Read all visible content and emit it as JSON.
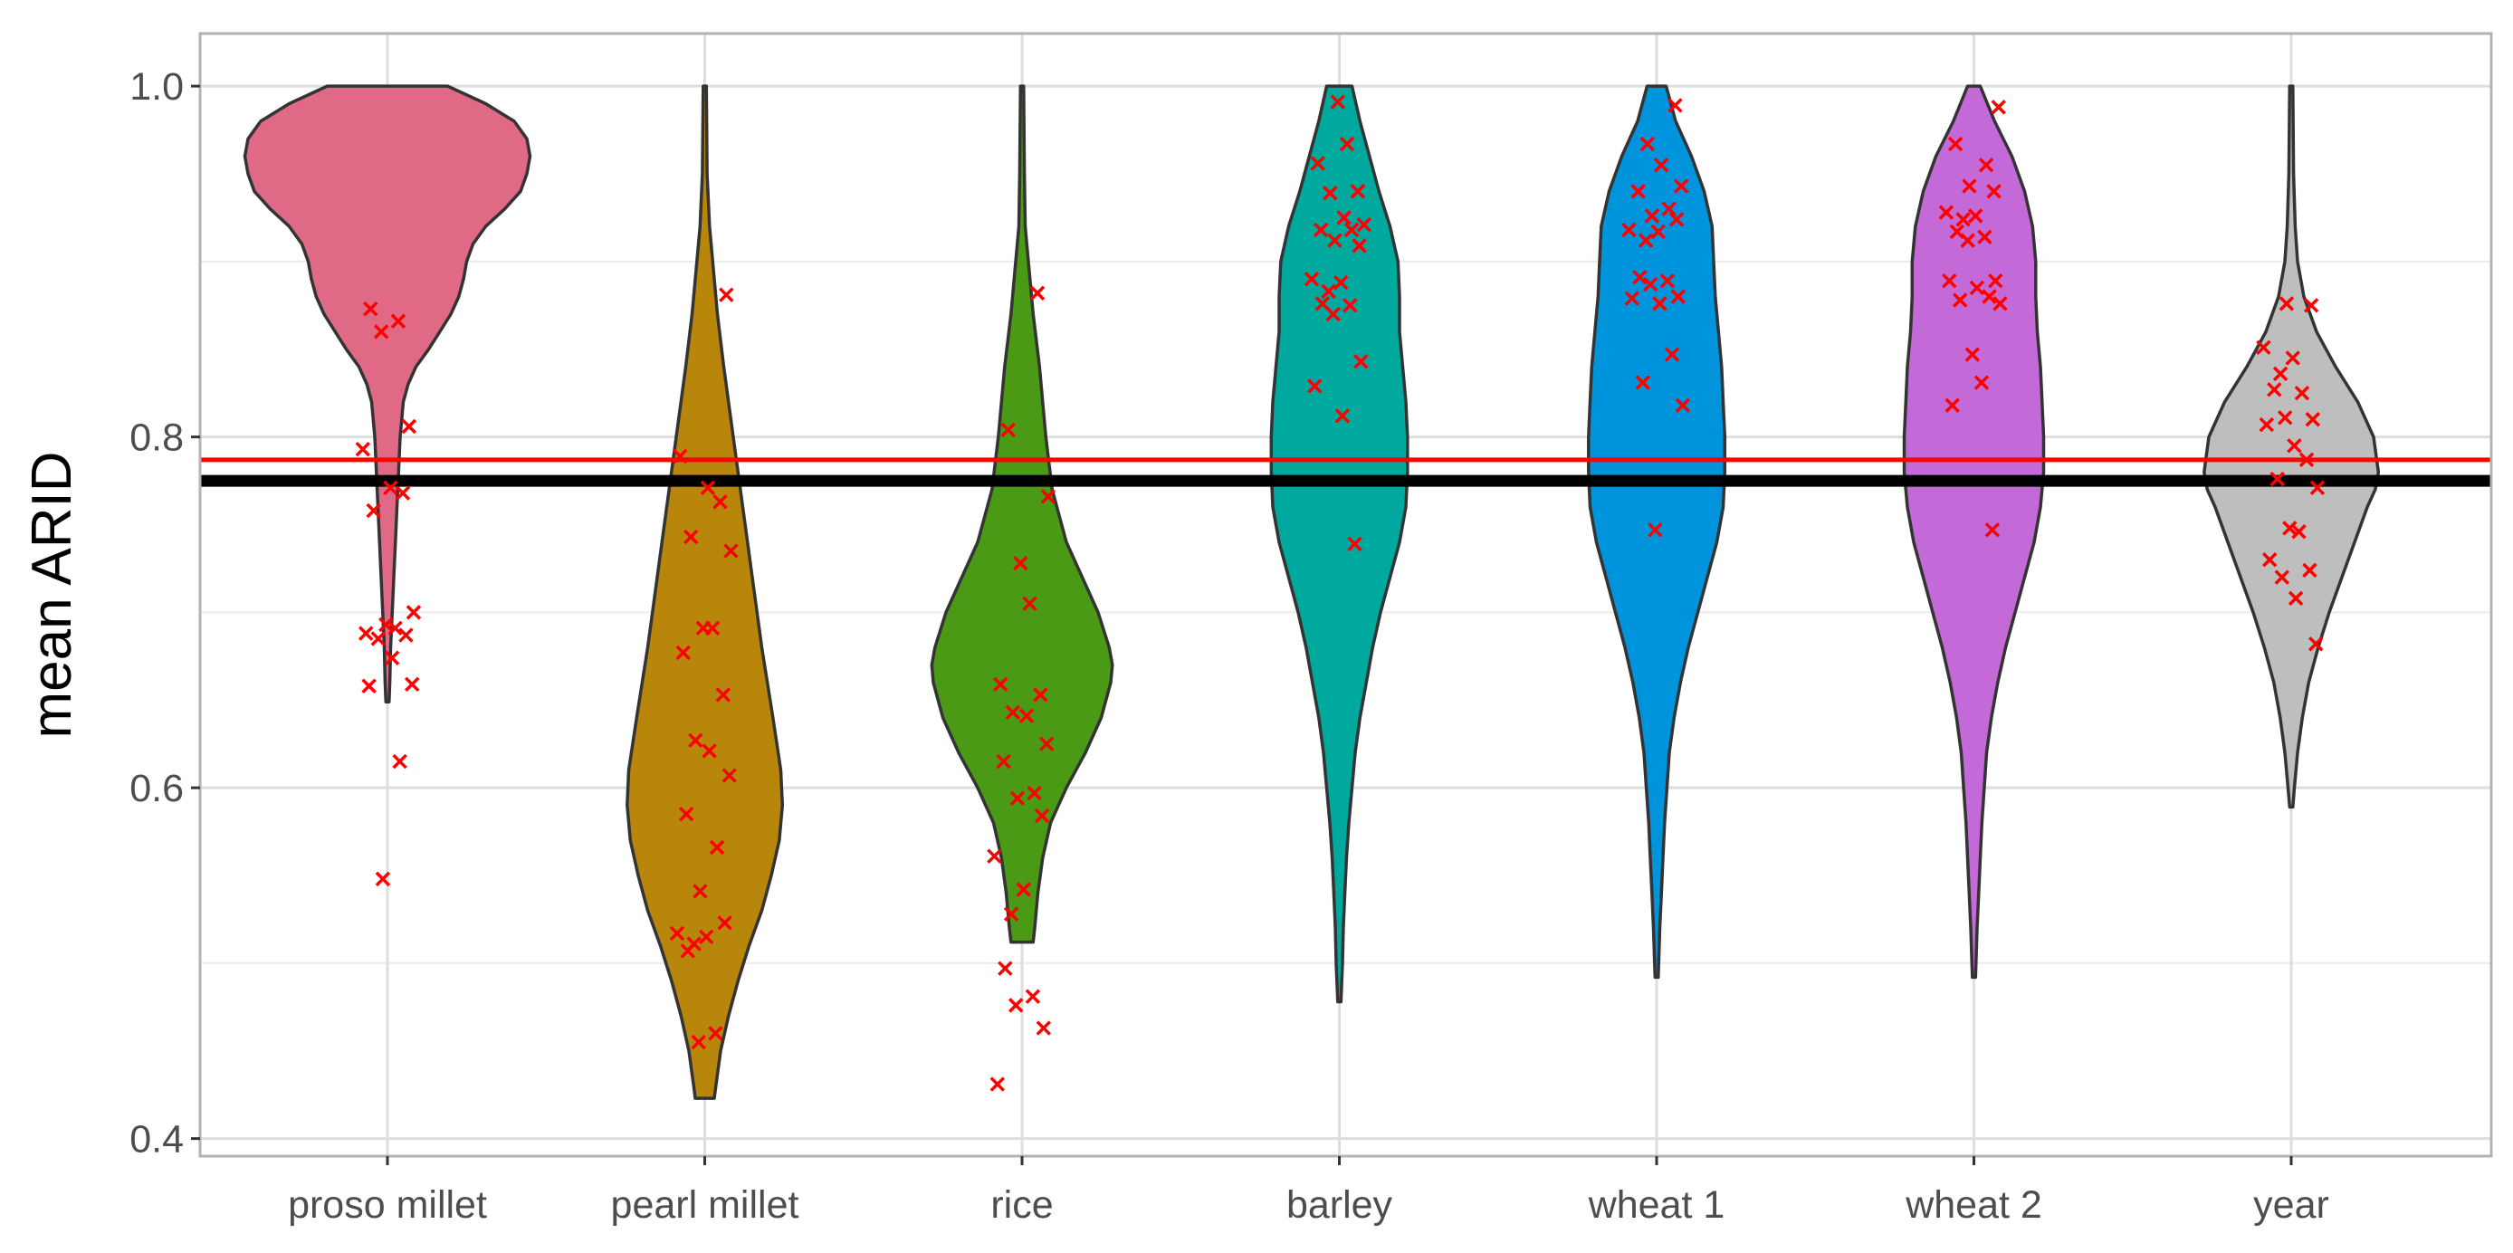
{
  "chart_data": {
    "type": "violin",
    "title": "",
    "xlabel": "",
    "ylabel": "mean ARID",
    "ylim": [
      0.39,
      1.03
    ],
    "yticks": [
      0.4,
      0.6,
      0.8,
      1.0
    ],
    "ytick_labels": [
      "0.4",
      "0.6",
      "0.8",
      "1.0"
    ],
    "minor_yticks": [
      0.5,
      0.7,
      0.9
    ],
    "grid": true,
    "reference_lines": [
      {
        "name": "red-reference-line",
        "y": 0.787,
        "color": "#ff0000"
      },
      {
        "name": "black-reference-line",
        "y": 0.775,
        "color": "#000000"
      }
    ],
    "categories": [
      "proso millet",
      "pearl millet",
      "rice",
      "barley",
      "wheat 1",
      "wheat 2",
      "year"
    ],
    "violins": [
      {
        "name": "proso millet",
        "color": "#e06a85",
        "profile": [
          [
            1.0,
            0.38
          ],
          [
            0.99,
            0.62
          ],
          [
            0.98,
            0.8
          ],
          [
            0.97,
            0.88
          ],
          [
            0.96,
            0.9
          ],
          [
            0.95,
            0.88
          ],
          [
            0.94,
            0.84
          ],
          [
            0.93,
            0.74
          ],
          [
            0.92,
            0.62
          ],
          [
            0.91,
            0.54
          ],
          [
            0.9,
            0.5
          ],
          [
            0.89,
            0.48
          ],
          [
            0.88,
            0.45
          ],
          [
            0.87,
            0.4
          ],
          [
            0.86,
            0.33
          ],
          [
            0.85,
            0.26
          ],
          [
            0.84,
            0.18
          ],
          [
            0.83,
            0.13
          ],
          [
            0.82,
            0.1
          ],
          [
            0.81,
            0.09
          ],
          [
            0.8,
            0.08
          ],
          [
            0.78,
            0.07
          ],
          [
            0.76,
            0.06
          ],
          [
            0.74,
            0.05
          ],
          [
            0.72,
            0.04
          ],
          [
            0.7,
            0.03
          ],
          [
            0.68,
            0.02
          ],
          [
            0.66,
            0.015
          ],
          [
            0.649,
            0.01
          ]
        ]
      },
      {
        "name": "pearl millet",
        "color": "#b8860b",
        "profile": [
          [
            1.0,
            0.01
          ],
          [
            0.95,
            0.015
          ],
          [
            0.92,
            0.03
          ],
          [
            0.9,
            0.05
          ],
          [
            0.87,
            0.08
          ],
          [
            0.84,
            0.12
          ],
          [
            0.8,
            0.18
          ],
          [
            0.76,
            0.24
          ],
          [
            0.72,
            0.3
          ],
          [
            0.68,
            0.36
          ],
          [
            0.64,
            0.43
          ],
          [
            0.61,
            0.48
          ],
          [
            0.59,
            0.49
          ],
          [
            0.57,
            0.47
          ],
          [
            0.55,
            0.42
          ],
          [
            0.53,
            0.36
          ],
          [
            0.51,
            0.28
          ],
          [
            0.49,
            0.21
          ],
          [
            0.47,
            0.15
          ],
          [
            0.45,
            0.1
          ],
          [
            0.43,
            0.07
          ],
          [
            0.423,
            0.06
          ]
        ]
      },
      {
        "name": "rice",
        "color": "#4b9a16",
        "profile": [
          [
            1.0,
            0.01
          ],
          [
            0.95,
            0.015
          ],
          [
            0.92,
            0.02
          ],
          [
            0.9,
            0.04
          ],
          [
            0.87,
            0.07
          ],
          [
            0.84,
            0.11
          ],
          [
            0.8,
            0.15
          ],
          [
            0.77,
            0.19
          ],
          [
            0.74,
            0.28
          ],
          [
            0.72,
            0.38
          ],
          [
            0.7,
            0.48
          ],
          [
            0.68,
            0.55
          ],
          [
            0.67,
            0.57
          ],
          [
            0.66,
            0.56
          ],
          [
            0.64,
            0.5
          ],
          [
            0.62,
            0.4
          ],
          [
            0.6,
            0.28
          ],
          [
            0.58,
            0.18
          ],
          [
            0.56,
            0.13
          ],
          [
            0.54,
            0.1
          ],
          [
            0.52,
            0.08
          ],
          [
            0.512,
            0.07
          ]
        ]
      },
      {
        "name": "barley",
        "color": "#00a99d",
        "profile": [
          [
            1.0,
            0.08
          ],
          [
            0.98,
            0.13
          ],
          [
            0.96,
            0.19
          ],
          [
            0.94,
            0.25
          ],
          [
            0.92,
            0.32
          ],
          [
            0.9,
            0.37
          ],
          [
            0.88,
            0.38
          ],
          [
            0.86,
            0.38
          ],
          [
            0.84,
            0.4
          ],
          [
            0.82,
            0.42
          ],
          [
            0.8,
            0.43
          ],
          [
            0.78,
            0.43
          ],
          [
            0.76,
            0.42
          ],
          [
            0.74,
            0.38
          ],
          [
            0.72,
            0.32
          ],
          [
            0.7,
            0.26
          ],
          [
            0.68,
            0.21
          ],
          [
            0.66,
            0.17
          ],
          [
            0.64,
            0.13
          ],
          [
            0.62,
            0.1
          ],
          [
            0.6,
            0.08
          ],
          [
            0.58,
            0.06
          ],
          [
            0.56,
            0.045
          ],
          [
            0.54,
            0.035
          ],
          [
            0.52,
            0.025
          ],
          [
            0.5,
            0.02
          ],
          [
            0.478,
            0.01
          ]
        ]
      },
      {
        "name": "wheat 1",
        "color": "#0094dd",
        "profile": [
          [
            1.0,
            0.06
          ],
          [
            0.98,
            0.12
          ],
          [
            0.96,
            0.22
          ],
          [
            0.94,
            0.3
          ],
          [
            0.92,
            0.35
          ],
          [
            0.9,
            0.36
          ],
          [
            0.88,
            0.37
          ],
          [
            0.86,
            0.39
          ],
          [
            0.84,
            0.41
          ],
          [
            0.82,
            0.42
          ],
          [
            0.8,
            0.43
          ],
          [
            0.78,
            0.43
          ],
          [
            0.76,
            0.42
          ],
          [
            0.74,
            0.38
          ],
          [
            0.72,
            0.32
          ],
          [
            0.7,
            0.26
          ],
          [
            0.68,
            0.2
          ],
          [
            0.66,
            0.15
          ],
          [
            0.64,
            0.11
          ],
          [
            0.62,
            0.08
          ],
          [
            0.6,
            0.065
          ],
          [
            0.58,
            0.05
          ],
          [
            0.56,
            0.04
          ],
          [
            0.54,
            0.03
          ],
          [
            0.52,
            0.02
          ],
          [
            0.492,
            0.01
          ]
        ]
      },
      {
        "name": "wheat 2",
        "color": "#c46ad8",
        "profile": [
          [
            1.0,
            0.04
          ],
          [
            0.98,
            0.13
          ],
          [
            0.96,
            0.24
          ],
          [
            0.94,
            0.32
          ],
          [
            0.92,
            0.37
          ],
          [
            0.9,
            0.39
          ],
          [
            0.88,
            0.39
          ],
          [
            0.86,
            0.4
          ],
          [
            0.84,
            0.42
          ],
          [
            0.82,
            0.43
          ],
          [
            0.8,
            0.44
          ],
          [
            0.78,
            0.44
          ],
          [
            0.76,
            0.42
          ],
          [
            0.74,
            0.38
          ],
          [
            0.72,
            0.32
          ],
          [
            0.7,
            0.26
          ],
          [
            0.68,
            0.2
          ],
          [
            0.66,
            0.15
          ],
          [
            0.64,
            0.11
          ],
          [
            0.62,
            0.08
          ],
          [
            0.6,
            0.065
          ],
          [
            0.58,
            0.05
          ],
          [
            0.56,
            0.04
          ],
          [
            0.54,
            0.03
          ],
          [
            0.52,
            0.02
          ],
          [
            0.492,
            0.01
          ]
        ]
      },
      {
        "name": "year",
        "color": "#bebebe",
        "profile": [
          [
            1.0,
            0.01
          ],
          [
            0.95,
            0.015
          ],
          [
            0.92,
            0.025
          ],
          [
            0.9,
            0.04
          ],
          [
            0.88,
            0.08
          ],
          [
            0.86,
            0.16
          ],
          [
            0.84,
            0.28
          ],
          [
            0.82,
            0.42
          ],
          [
            0.8,
            0.52
          ],
          [
            0.78,
            0.55
          ],
          [
            0.77,
            0.53
          ],
          [
            0.76,
            0.48
          ],
          [
            0.74,
            0.4
          ],
          [
            0.72,
            0.32
          ],
          [
            0.7,
            0.24
          ],
          [
            0.68,
            0.17
          ],
          [
            0.66,
            0.11
          ],
          [
            0.64,
            0.07
          ],
          [
            0.62,
            0.04
          ],
          [
            0.6,
            0.02
          ],
          [
            0.589,
            0.01
          ]
        ]
      }
    ],
    "points": [
      {
        "category": "proso millet",
        "color": "#ff0000",
        "values": [
          0.873,
          0.866,
          0.86,
          0.806,
          0.793,
          0.771,
          0.768,
          0.758,
          0.7,
          0.693,
          0.691,
          0.688,
          0.687,
          0.685,
          0.674,
          0.659,
          0.658,
          0.615,
          0.548
        ]
      },
      {
        "category": "pearl millet",
        "color": "#ff0000",
        "values": [
          0.881,
          0.789,
          0.771,
          0.763,
          0.743,
          0.735,
          0.691,
          0.691,
          0.677,
          0.653,
          0.627,
          0.621,
          0.607,
          0.585,
          0.566,
          0.541,
          0.523,
          0.517,
          0.515,
          0.511,
          0.507,
          0.46,
          0.455
        ]
      },
      {
        "category": "rice",
        "color": "#ff0000",
        "values": [
          0.882,
          0.804,
          0.766,
          0.728,
          0.705,
          0.659,
          0.653,
          0.643,
          0.641,
          0.625,
          0.615,
          0.597,
          0.594,
          0.584,
          0.561,
          0.542,
          0.528,
          0.497,
          0.481,
          0.476,
          0.463,
          0.431
        ]
      },
      {
        "category": "barley",
        "color": "#ff0000",
        "values": [
          0.991,
          0.967,
          0.956,
          0.94,
          0.939,
          0.925,
          0.921,
          0.918,
          0.918,
          0.912,
          0.909,
          0.89,
          0.888,
          0.883,
          0.876,
          0.875,
          0.87,
          0.843,
          0.829,
          0.812,
          0.739
        ]
      },
      {
        "category": "wheat 1",
        "color": "#ff0000",
        "values": [
          0.989,
          0.967,
          0.955,
          0.943,
          0.94,
          0.93,
          0.926,
          0.924,
          0.918,
          0.917,
          0.912,
          0.891,
          0.889,
          0.887,
          0.88,
          0.879,
          0.876,
          0.847,
          0.831,
          0.818,
          0.747
        ]
      },
      {
        "category": "wheat 2",
        "color": "#ff0000",
        "values": [
          0.988,
          0.967,
          0.955,
          0.943,
          0.94,
          0.928,
          0.926,
          0.924,
          0.917,
          0.914,
          0.912,
          0.889,
          0.889,
          0.885,
          0.88,
          0.878,
          0.876,
          0.847,
          0.831,
          0.818,
          0.747
        ]
      },
      {
        "category": "year",
        "color": "#ff0000",
        "values": [
          0.876,
          0.875,
          0.851,
          0.845,
          0.836,
          0.827,
          0.825,
          0.811,
          0.81,
          0.807,
          0.795,
          0.787,
          0.776,
          0.771,
          0.748,
          0.746,
          0.73,
          0.724,
          0.72,
          0.708,
          0.682
        ]
      }
    ]
  }
}
